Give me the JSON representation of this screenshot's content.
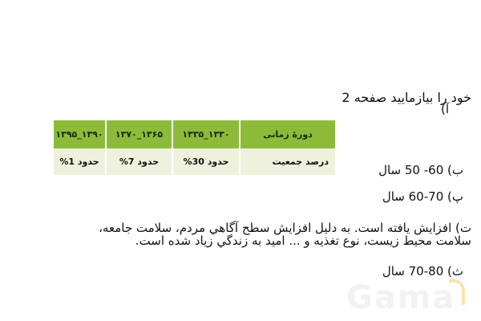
{
  "heading": "خود را بیازمایید صفحه 2",
  "item_a": "آ)",
  "table": {
    "headers": [
      "دورهٔ زمانی",
      "۱۳۳۰_۱۳۳۵",
      "۱۳۶۵_۱۳۷۰",
      "۱۳۹۰_۱۳۹۵"
    ],
    "row": [
      "درصد جمعیت",
      "حدود 30%",
      "حدود 7%",
      "حدود 1%"
    ],
    "header_color": "#8cbb3a",
    "row_color": "#eef2dc"
  },
  "item_b": "ب) 60- 50 سال",
  "item_p": "پ) 70-60 سال",
  "item_t_line1": "ت) افزایش یافته است. به دلیل افزایش سطح آگاهي مردم، سلامت جامعه،",
  "item_t_line2": "سلامت محیط زیست، نوع تغذیه و ... امید به زندگي زياد شده است.",
  "item_s": "ث) 80-70 سال",
  "watermark": "Gama"
}
